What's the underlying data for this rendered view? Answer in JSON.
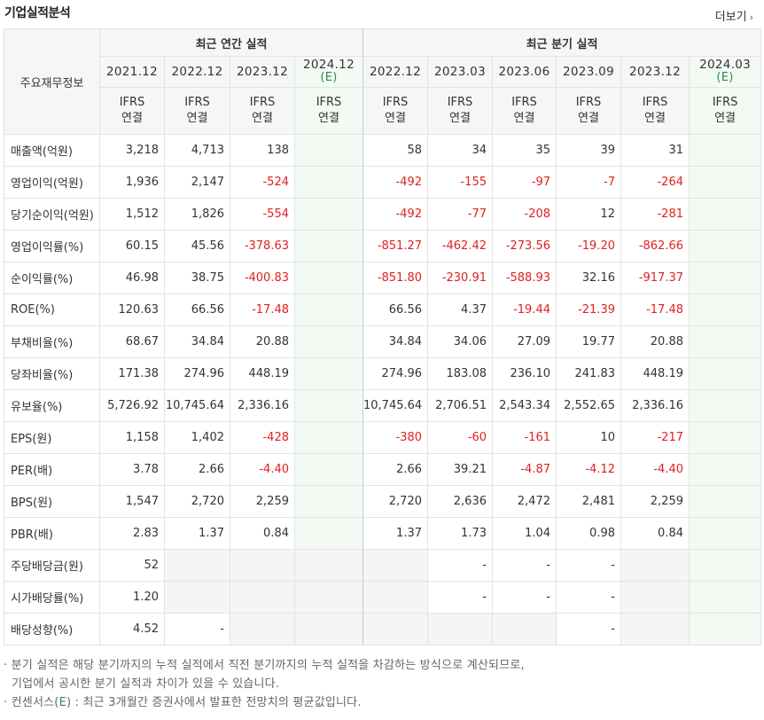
{
  "header": {
    "title": "기업실적분석",
    "more_label": "더보기",
    "more_icon": "chevron-right-icon"
  },
  "table": {
    "row_header": "주요재무정보",
    "groups": {
      "annual": "최근 연간 실적",
      "quarterly": "최근 분기 실적"
    },
    "periods": [
      "2021.12",
      "2022.12",
      "2023.12",
      "2024.12",
      "2022.12",
      "2023.03",
      "2023.06",
      "2023.09",
      "2023.12",
      "2024.03"
    ],
    "estimate_mark": "(E)",
    "ifrs_top": "IFRS",
    "ifrs_bottom": "연결",
    "rows": [
      {
        "label": "매출액(억원)",
        "values": [
          "3,218",
          "4,713",
          "138",
          "",
          "58",
          "34",
          "35",
          "39",
          "31",
          ""
        ]
      },
      {
        "label": "영업이익(억원)",
        "values": [
          "1,936",
          "2,147",
          "-524",
          "",
          "-492",
          "-155",
          "-97",
          "-7",
          "-264",
          ""
        ]
      },
      {
        "label": "당기순이익(억원)",
        "values": [
          "1,512",
          "1,826",
          "-554",
          "",
          "-492",
          "-77",
          "-208",
          "12",
          "-281",
          ""
        ]
      },
      {
        "label": "영업이익률(%)",
        "values": [
          "60.15",
          "45.56",
          "-378.63",
          "",
          "-851.27",
          "-462.42",
          "-273.56",
          "-19.20",
          "-862.66",
          ""
        ]
      },
      {
        "label": "순이익률(%)",
        "values": [
          "46.98",
          "38.75",
          "-400.83",
          "",
          "-851.80",
          "-230.91",
          "-588.93",
          "32.16",
          "-917.37",
          ""
        ]
      },
      {
        "label": "ROE(%)",
        "values": [
          "120.63",
          "66.56",
          "-17.48",
          "",
          "66.56",
          "4.37",
          "-19.44",
          "-21.39",
          "-17.48",
          ""
        ]
      },
      {
        "label": "부채비율(%)",
        "values": [
          "68.67",
          "34.84",
          "20.88",
          "",
          "34.84",
          "34.06",
          "27.09",
          "19.77",
          "20.88",
          ""
        ]
      },
      {
        "label": "당좌비율(%)",
        "values": [
          "171.38",
          "274.96",
          "448.19",
          "",
          "274.96",
          "183.08",
          "236.10",
          "241.83",
          "448.19",
          ""
        ]
      },
      {
        "label": "유보율(%)",
        "values": [
          "5,726.92",
          "10,745.64",
          "2,336.16",
          "",
          "10,745.64",
          "2,706.51",
          "2,543.34",
          "2,552.65",
          "2,336.16",
          ""
        ]
      },
      {
        "label": "EPS(원)",
        "values": [
          "1,158",
          "1,402",
          "-428",
          "",
          "-380",
          "-60",
          "-161",
          "10",
          "-217",
          ""
        ]
      },
      {
        "label": "PER(배)",
        "values": [
          "3.78",
          "2.66",
          "-4.40",
          "",
          "2.66",
          "39.21",
          "-4.87",
          "-4.12",
          "-4.40",
          ""
        ]
      },
      {
        "label": "BPS(원)",
        "values": [
          "1,547",
          "2,720",
          "2,259",
          "",
          "2,720",
          "2,636",
          "2,472",
          "2,481",
          "2,259",
          ""
        ]
      },
      {
        "label": "PBR(배)",
        "values": [
          "2.83",
          "1.37",
          "0.84",
          "",
          "1.37",
          "1.73",
          "1.04",
          "0.98",
          "0.84",
          ""
        ]
      },
      {
        "label": "주당배당금(원)",
        "values": [
          "52",
          "",
          "",
          "",
          "",
          "-",
          "-",
          "-",
          "",
          ""
        ]
      },
      {
        "label": "시가배당률(%)",
        "values": [
          "1.20",
          "",
          "",
          "",
          "",
          "-",
          "-",
          "-",
          "",
          ""
        ]
      },
      {
        "label": "배당성향(%)",
        "values": [
          "4.52",
          "-",
          "",
          "",
          "",
          "",
          "",
          "-",
          "",
          ""
        ]
      }
    ]
  },
  "notes": {
    "line1": "· 분기 실적은 해당 분기까지의 누적 실적에서 직전 분기까지의 누적 실적을 차감하는 방식으로 계산되므로,",
    "line2": "기업에서 공시한 분기 실적과 차이가 있을 수 있습니다.",
    "line3_prefix": "· 컨센서스(",
    "line3_mark": "E",
    "line3_suffix": ") : 최근 3개월간 증권사에서 발표한 전망치의 평균값입니다."
  },
  "colors": {
    "negative": "#e02020",
    "estimate_bg": "#f3f9f3",
    "estimate_text": "#2e8b4b",
    "ifrs": "#e8731e"
  }
}
